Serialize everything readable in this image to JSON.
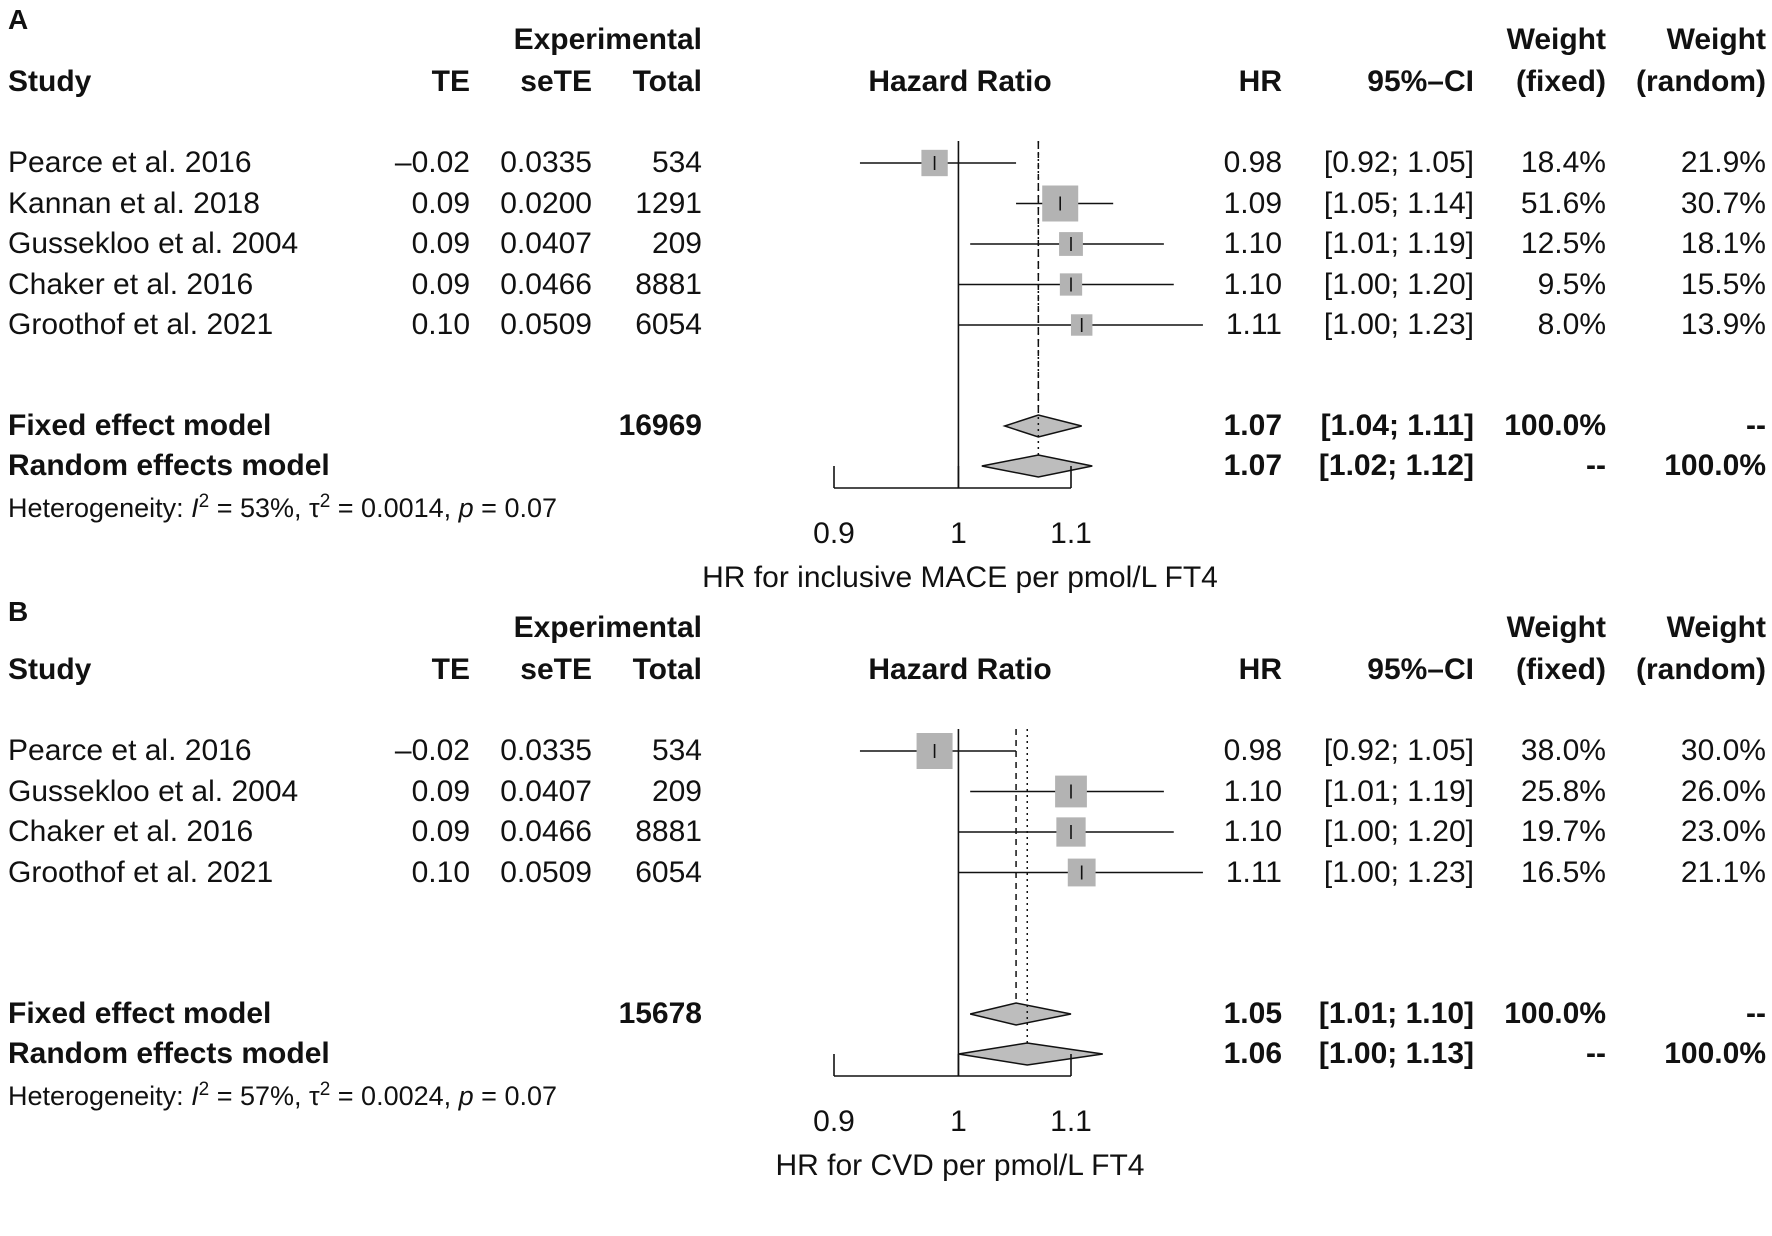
{
  "chart_data": [
    {
      "panel": "A",
      "type": "forest",
      "header": {
        "experimental": "Experimental",
        "study": "Study",
        "te": "TE",
        "sete": "seTE",
        "total": "Total",
        "plot": "Hazard Ratio",
        "hr": "HR",
        "ci": "95%–CI",
        "weight1": "Weight",
        "weight_fixed": "(fixed)",
        "weight2": "Weight",
        "weight_random": "(random)"
      },
      "studies": [
        {
          "study": "Pearce et al. 2016",
          "te": "–0.02",
          "sete": "0.0335",
          "total": "534",
          "hr_text": "0.98",
          "ci_text": "[0.92; 1.05]",
          "wf": "18.4%",
          "wr": "21.9%",
          "hr": 0.98,
          "lo": 0.92,
          "hi": 1.05,
          "weight": 18.4
        },
        {
          "study": "Kannan et al.  2018",
          "te": "0.09",
          "sete": "0.0200",
          "total": "1291",
          "hr_text": "1.09",
          "ci_text": "[1.05; 1.14]",
          "wf": "51.6%",
          "wr": "30.7%",
          "hr": 1.09,
          "lo": 1.05,
          "hi": 1.14,
          "weight": 51.6
        },
        {
          "study": "Gussekloo et al. 2004",
          "te": "0.09",
          "sete": "0.0407",
          "total": "209",
          "hr_text": "1.10",
          "ci_text": "[1.01; 1.19]",
          "wf": "12.5%",
          "wr": "18.1%",
          "hr": 1.1,
          "lo": 1.01,
          "hi": 1.19,
          "weight": 12.5
        },
        {
          "study": "Chaker et al. 2016",
          "te": "0.09",
          "sete": "0.0466",
          "total": "8881",
          "hr_text": "1.10",
          "ci_text": "[1.00; 1.20]",
          "wf": "9.5%",
          "wr": "15.5%",
          "hr": 1.1,
          "lo": 1.0,
          "hi": 1.2,
          "weight": 9.5
        },
        {
          "study": "Groothof et al.  2021",
          "te": "0.10",
          "sete": "0.0509",
          "total": "6054",
          "hr_text": "1.11",
          "ci_text": "[1.00; 1.23]",
          "wf": "8.0%",
          "wr": "13.9%",
          "hr": 1.11,
          "lo": 1.0,
          "hi": 1.23,
          "weight": 8.0
        }
      ],
      "fixed": {
        "label": "Fixed effect model",
        "total": "16969",
        "hr_text": "1.07",
        "ci_text": "[1.04; 1.11]",
        "wf": "100.0%",
        "wr": "--",
        "hr": 1.07,
        "lo": 1.04,
        "hi": 1.11
      },
      "random": {
        "label": "Random effects model",
        "total": "",
        "hr_text": "1.07",
        "ci_text": "[1.02; 1.12]",
        "wf": "--",
        "wr": "100.0%",
        "hr": 1.07,
        "lo": 1.02,
        "hi": 1.12
      },
      "heterogeneity": {
        "prefix": "Heterogeneity: ",
        "i2_sym": "I",
        "i2_sup": "2",
        "i2_val": " = 53%, ",
        "tau_sym": "τ",
        "tau_sup": "2",
        "tau_val": " = 0.0014, ",
        "p_sym": "p",
        "p_val": " = 0.07"
      },
      "xaxis": {
        "ticks": [
          0.9,
          1,
          1.1
        ],
        "tick_labels": [
          "0.9",
          "1",
          "1.1"
        ],
        "range": [
          0.9,
          1.1
        ],
        "null_line": 1,
        "label": "HR for inclusive MACE per pmol/L FT4"
      }
    },
    {
      "panel": "B",
      "type": "forest",
      "header": {
        "experimental": "Experimental",
        "study": "Study",
        "te": "TE",
        "sete": "seTE",
        "total": "Total",
        "plot": "Hazard Ratio",
        "hr": "HR",
        "ci": "95%–CI",
        "weight1": "Weight",
        "weight_fixed": "(fixed)",
        "weight2": "Weight",
        "weight_random": "(random)"
      },
      "studies": [
        {
          "study": "Pearce et al. 2016",
          "te": "–0.02",
          "sete": "0.0335",
          "total": "534",
          "hr_text": "0.98",
          "ci_text": "[0.92; 1.05]",
          "wf": "38.0%",
          "wr": "30.0%",
          "hr": 0.98,
          "lo": 0.92,
          "hi": 1.05,
          "weight": 38.0
        },
        {
          "study": "Gussekloo et al. 2004",
          "te": "0.09",
          "sete": "0.0407",
          "total": "209",
          "hr_text": "1.10",
          "ci_text": "[1.01; 1.19]",
          "wf": "25.8%",
          "wr": "26.0%",
          "hr": 1.1,
          "lo": 1.01,
          "hi": 1.19,
          "weight": 25.8
        },
        {
          "study": "Chaker et al. 2016",
          "te": "0.09",
          "sete": "0.0466",
          "total": "8881",
          "hr_text": "1.10",
          "ci_text": "[1.00; 1.20]",
          "wf": "19.7%",
          "wr": "23.0%",
          "hr": 1.1,
          "lo": 1.0,
          "hi": 1.2,
          "weight": 19.7
        },
        {
          "study": "Groothof et al.  2021",
          "te": "0.10",
          "sete": "0.0509",
          "total": "6054",
          "hr_text": "1.11",
          "ci_text": "[1.00; 1.23]",
          "wf": "16.5%",
          "wr": "21.1%",
          "hr": 1.11,
          "lo": 1.0,
          "hi": 1.23,
          "weight": 16.5
        }
      ],
      "fixed": {
        "label": "Fixed effect model",
        "total": "15678",
        "hr_text": "1.05",
        "ci_text": "[1.01; 1.10]",
        "wf": "100.0%",
        "wr": "--",
        "hr": 1.05,
        "lo": 1.01,
        "hi": 1.1
      },
      "random": {
        "label": "Random effects model",
        "total": "",
        "hr_text": "1.06",
        "ci_text": "[1.00; 1.13]",
        "wf": "--",
        "wr": "100.0%",
        "hr": 1.06,
        "lo": 1.0,
        "hi": 1.13
      },
      "heterogeneity": {
        "prefix": "Heterogeneity: ",
        "i2_sym": "I",
        "i2_sup": "2",
        "i2_val": " = 57%, ",
        "tau_sym": "τ",
        "tau_sup": "2",
        "tau_val": " = 0.0024, ",
        "p_sym": "p",
        "p_val": " = 0.07"
      },
      "xaxis": {
        "ticks": [
          0.9,
          1,
          1.1
        ],
        "tick_labels": [
          "0.9",
          "1",
          "1.1"
        ],
        "range": [
          0.9,
          1.1
        ],
        "null_line": 1,
        "label": "HR for CVD per pmol/L FT4"
      }
    }
  ],
  "colors": {
    "box": "#b3b3b3",
    "diamond": "#bdbdbd",
    "line": "#111111"
  }
}
